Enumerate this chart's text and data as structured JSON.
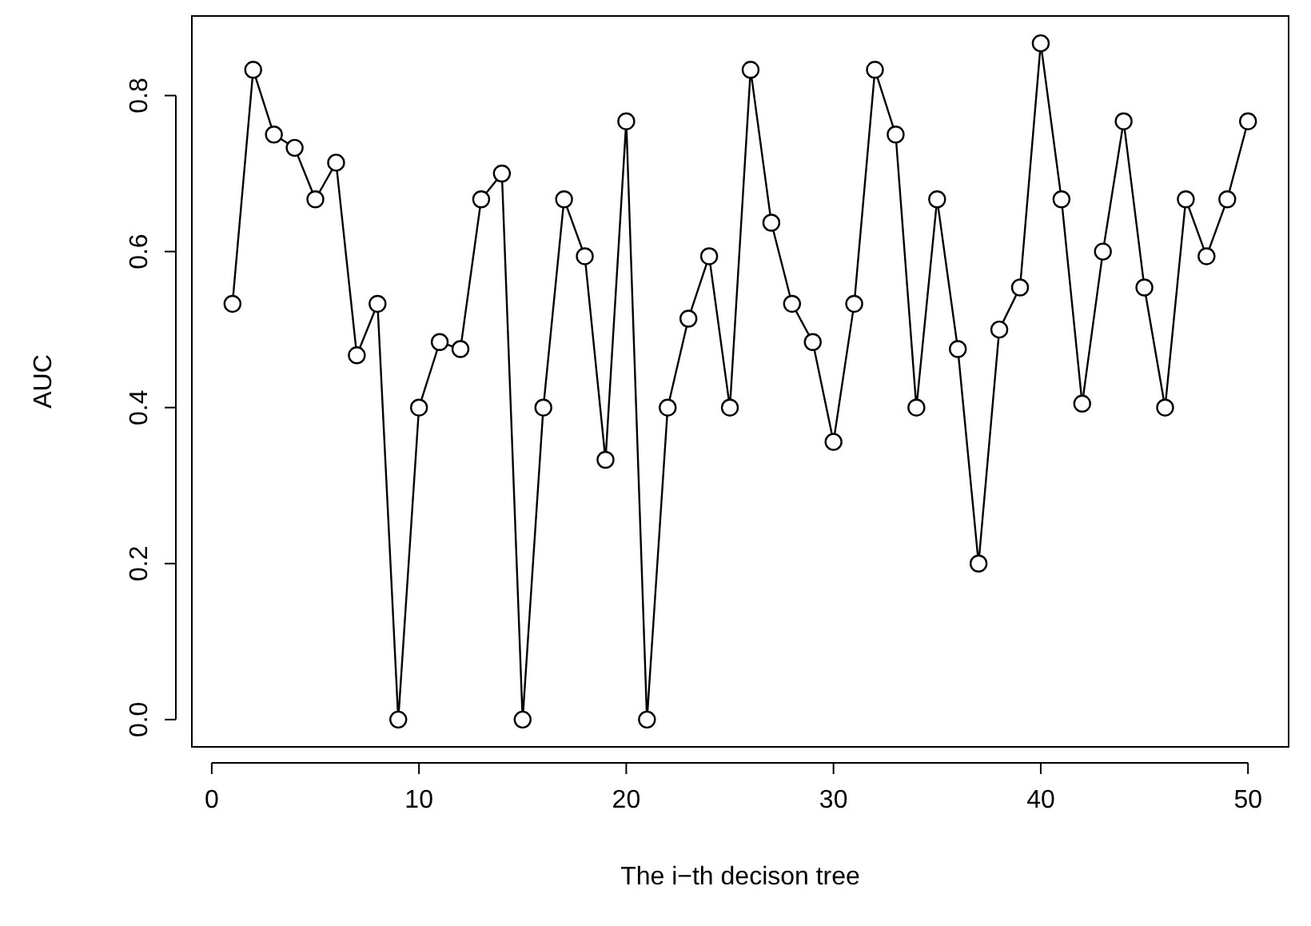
{
  "chart_data": {
    "type": "line",
    "xlabel": "The i−th decison tree",
    "ylabel": "AUC",
    "x": [
      1,
      2,
      3,
      4,
      5,
      6,
      7,
      8,
      9,
      10,
      11,
      12,
      13,
      14,
      15,
      16,
      17,
      18,
      19,
      20,
      21,
      22,
      23,
      24,
      25,
      26,
      27,
      28,
      29,
      30,
      31,
      32,
      33,
      34,
      35,
      36,
      37,
      38,
      39,
      40,
      41,
      42,
      43,
      44,
      45,
      46,
      47,
      48,
      49,
      50
    ],
    "series": [
      {
        "color": "#000000",
        "values": [
          0.533,
          0.833,
          0.75,
          0.733,
          0.667,
          0.714,
          0.467,
          0.533,
          0,
          0.4,
          0.484,
          0.475,
          0.667,
          0.7,
          0,
          0.4,
          0.667,
          0.594,
          0.333,
          0.767,
          0,
          0.4,
          0.514,
          0.594,
          0.4,
          0.833,
          0.637,
          0.533,
          0.484,
          0.356,
          0.533,
          0.833,
          0.75,
          0.4,
          0.667,
          0.475,
          0.2,
          0.5,
          0.554,
          0.867,
          0.667,
          0.405,
          0.6,
          0.767,
          0.554,
          0.4,
          0.667,
          0.594,
          0.667,
          0.767
        ]
      }
    ],
    "xlim": [
      -0.96,
      51.96
    ],
    "ylim": [
      -0.035,
      0.902
    ],
    "xticks": [
      0,
      10,
      20,
      30,
      40,
      50
    ],
    "yticks": [
      {
        "value": 0,
        "label": "0.0"
      },
      {
        "value": 0.2,
        "label": "0.2"
      },
      {
        "value": 0.4,
        "label": "0.4"
      },
      {
        "value": 0.6,
        "label": "0.6"
      },
      {
        "value": 0.8,
        "label": "0.8"
      }
    ],
    "marker": "circle",
    "line_style": "solid",
    "grid": false
  }
}
